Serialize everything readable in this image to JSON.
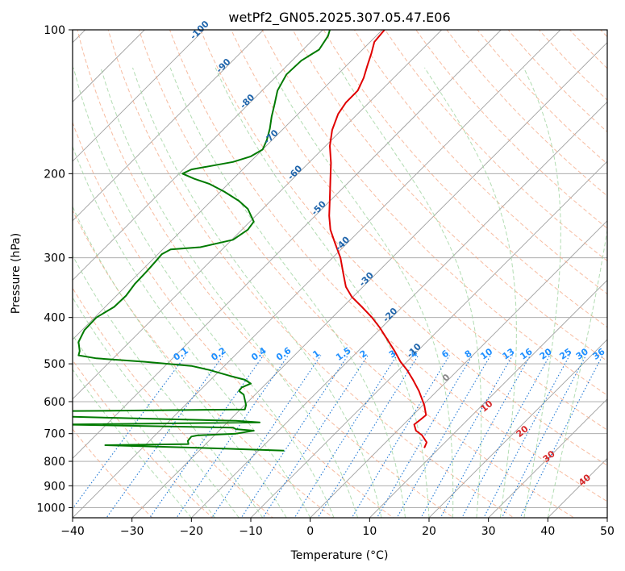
{
  "chart_data": {
    "type": "line",
    "title": "wetPf2_GN05.2025.307.05.47.E06",
    "xlabel": "Temperature (°C)",
    "ylabel": "Pressure (hPa)",
    "xlim": [
      -40,
      50
    ],
    "ylim": [
      1050,
      100
    ],
    "y_scale": "log",
    "grid": true,
    "x_ticks": [
      -40,
      -30,
      -20,
      -10,
      0,
      10,
      20,
      30,
      40,
      50
    ],
    "y_ticks": [
      100,
      200,
      300,
      400,
      500,
      600,
      700,
      800,
      900,
      1000
    ],
    "colors": {
      "temperature": "#e00000",
      "dewpoint": "#007a00",
      "isotherm": "#a0a0a0",
      "dry_adiabat": "#f4a582",
      "moist_adiabat": "#9fd39f",
      "mixing_ratio": "#1f77d4",
      "isotherm_label": "#2166ac",
      "dry_adiabat_label": "#d62728",
      "mixing_ratio_label": "#1f8fff"
    },
    "series": [
      {
        "key": "temperature",
        "points": [
          [
            19.2,
            750
          ],
          [
            19.6,
            730
          ],
          [
            18.8,
            705
          ],
          [
            17.8,
            690
          ],
          [
            17.5,
            670
          ],
          [
            18.5,
            655
          ],
          [
            19.5,
            640
          ],
          [
            19.2,
            610
          ],
          [
            18.3,
            570
          ],
          [
            17.3,
            540
          ],
          [
            16.3,
            515
          ],
          [
            15.2,
            495
          ],
          [
            14.2,
            470
          ],
          [
            13.0,
            445
          ],
          [
            11.7,
            420
          ],
          [
            10.4,
            400
          ],
          [
            8.7,
            380
          ],
          [
            7.0,
            362
          ],
          [
            6.0,
            345
          ],
          [
            5.6,
            325
          ],
          [
            5.1,
            300
          ],
          [
            4.2,
            280
          ],
          [
            3.4,
            262
          ],
          [
            3.2,
            245
          ],
          [
            3.3,
            225
          ],
          [
            3.4,
            205
          ],
          [
            3.5,
            190
          ],
          [
            3.3,
            175
          ],
          [
            3.7,
            162
          ],
          [
            4.7,
            150
          ],
          [
            6.0,
            142
          ],
          [
            8.0,
            134
          ],
          [
            9.0,
            126
          ],
          [
            9.6,
            119
          ],
          [
            10.3,
            112
          ],
          [
            10.8,
            106
          ],
          [
            12.5,
            100
          ]
        ]
      },
      {
        "key": "dewpoint",
        "points": [
          [
            -4.4,
            760
          ],
          [
            -15.0,
            752
          ],
          [
            -34.5,
            740
          ],
          [
            -27.0,
            738
          ],
          [
            -20.5,
            736
          ],
          [
            -20.6,
            725
          ],
          [
            -20.0,
            710
          ],
          [
            -19.0,
            706
          ],
          [
            -12.5,
            700
          ],
          [
            -9.5,
            690
          ],
          [
            -12.5,
            685
          ],
          [
            -13.0,
            680
          ],
          [
            -41.5,
            670
          ],
          [
            -8.5,
            663
          ],
          [
            -12.5,
            658
          ],
          [
            -41.0,
            645
          ],
          [
            -40.5,
            628
          ],
          [
            -11.0,
            623
          ],
          [
            -10.8,
            610
          ],
          [
            -11.2,
            580
          ],
          [
            -12.0,
            570
          ],
          [
            -11.5,
            560
          ],
          [
            -10.0,
            550
          ],
          [
            -11.0,
            540
          ],
          [
            -13.5,
            530
          ],
          [
            -17.0,
            515
          ],
          [
            -20.0,
            505
          ],
          [
            -28.0,
            495
          ],
          [
            -36.0,
            487
          ],
          [
            -39.0,
            480
          ],
          [
            -38.8,
            470
          ],
          [
            -39.0,
            450
          ],
          [
            -38.0,
            425
          ],
          [
            -36.0,
            400
          ],
          [
            -33.0,
            380
          ],
          [
            -31.0,
            360
          ],
          [
            -29.5,
            340
          ],
          [
            -27.5,
            320
          ],
          [
            -26.0,
            305
          ],
          [
            -25.0,
            295
          ],
          [
            -23.5,
            288
          ],
          [
            -18.5,
            285
          ],
          [
            -13.0,
            275
          ],
          [
            -10.5,
            262
          ],
          [
            -9.5,
            252
          ],
          [
            -10.5,
            237
          ],
          [
            -12.0,
            228
          ],
          [
            -14.5,
            218
          ],
          [
            -17.0,
            210
          ],
          [
            -19.5,
            205
          ],
          [
            -21.5,
            200
          ],
          [
            -20.0,
            196
          ],
          [
            -16.0,
            192
          ],
          [
            -13.0,
            189
          ],
          [
            -10.0,
            184
          ],
          [
            -8.0,
            178
          ],
          [
            -7.3,
            170
          ],
          [
            -6.8,
            161
          ],
          [
            -6.5,
            152
          ],
          [
            -6.0,
            143
          ],
          [
            -5.5,
            134
          ],
          [
            -4.0,
            124
          ],
          [
            -1.5,
            116
          ],
          [
            1.5,
            110
          ],
          [
            3.0,
            103
          ],
          [
            3.3,
            100
          ]
        ]
      }
    ],
    "isotherm_labels": [
      "-100",
      "-90",
      "-80",
      "-70",
      "-60",
      "-50",
      "-40",
      "-30",
      "-20",
      "-10",
      "0"
    ],
    "dry_adiabat_labels": [
      "10",
      "20",
      "30",
      "40"
    ],
    "mixing_ratio_labels": [
      "0.1",
      "0.2",
      "0.4",
      "0.6",
      "1",
      "1.5",
      "2",
      "3",
      "4",
      "6",
      "8",
      "10",
      "13",
      "16",
      "20",
      "25",
      "30",
      "36"
    ]
  }
}
